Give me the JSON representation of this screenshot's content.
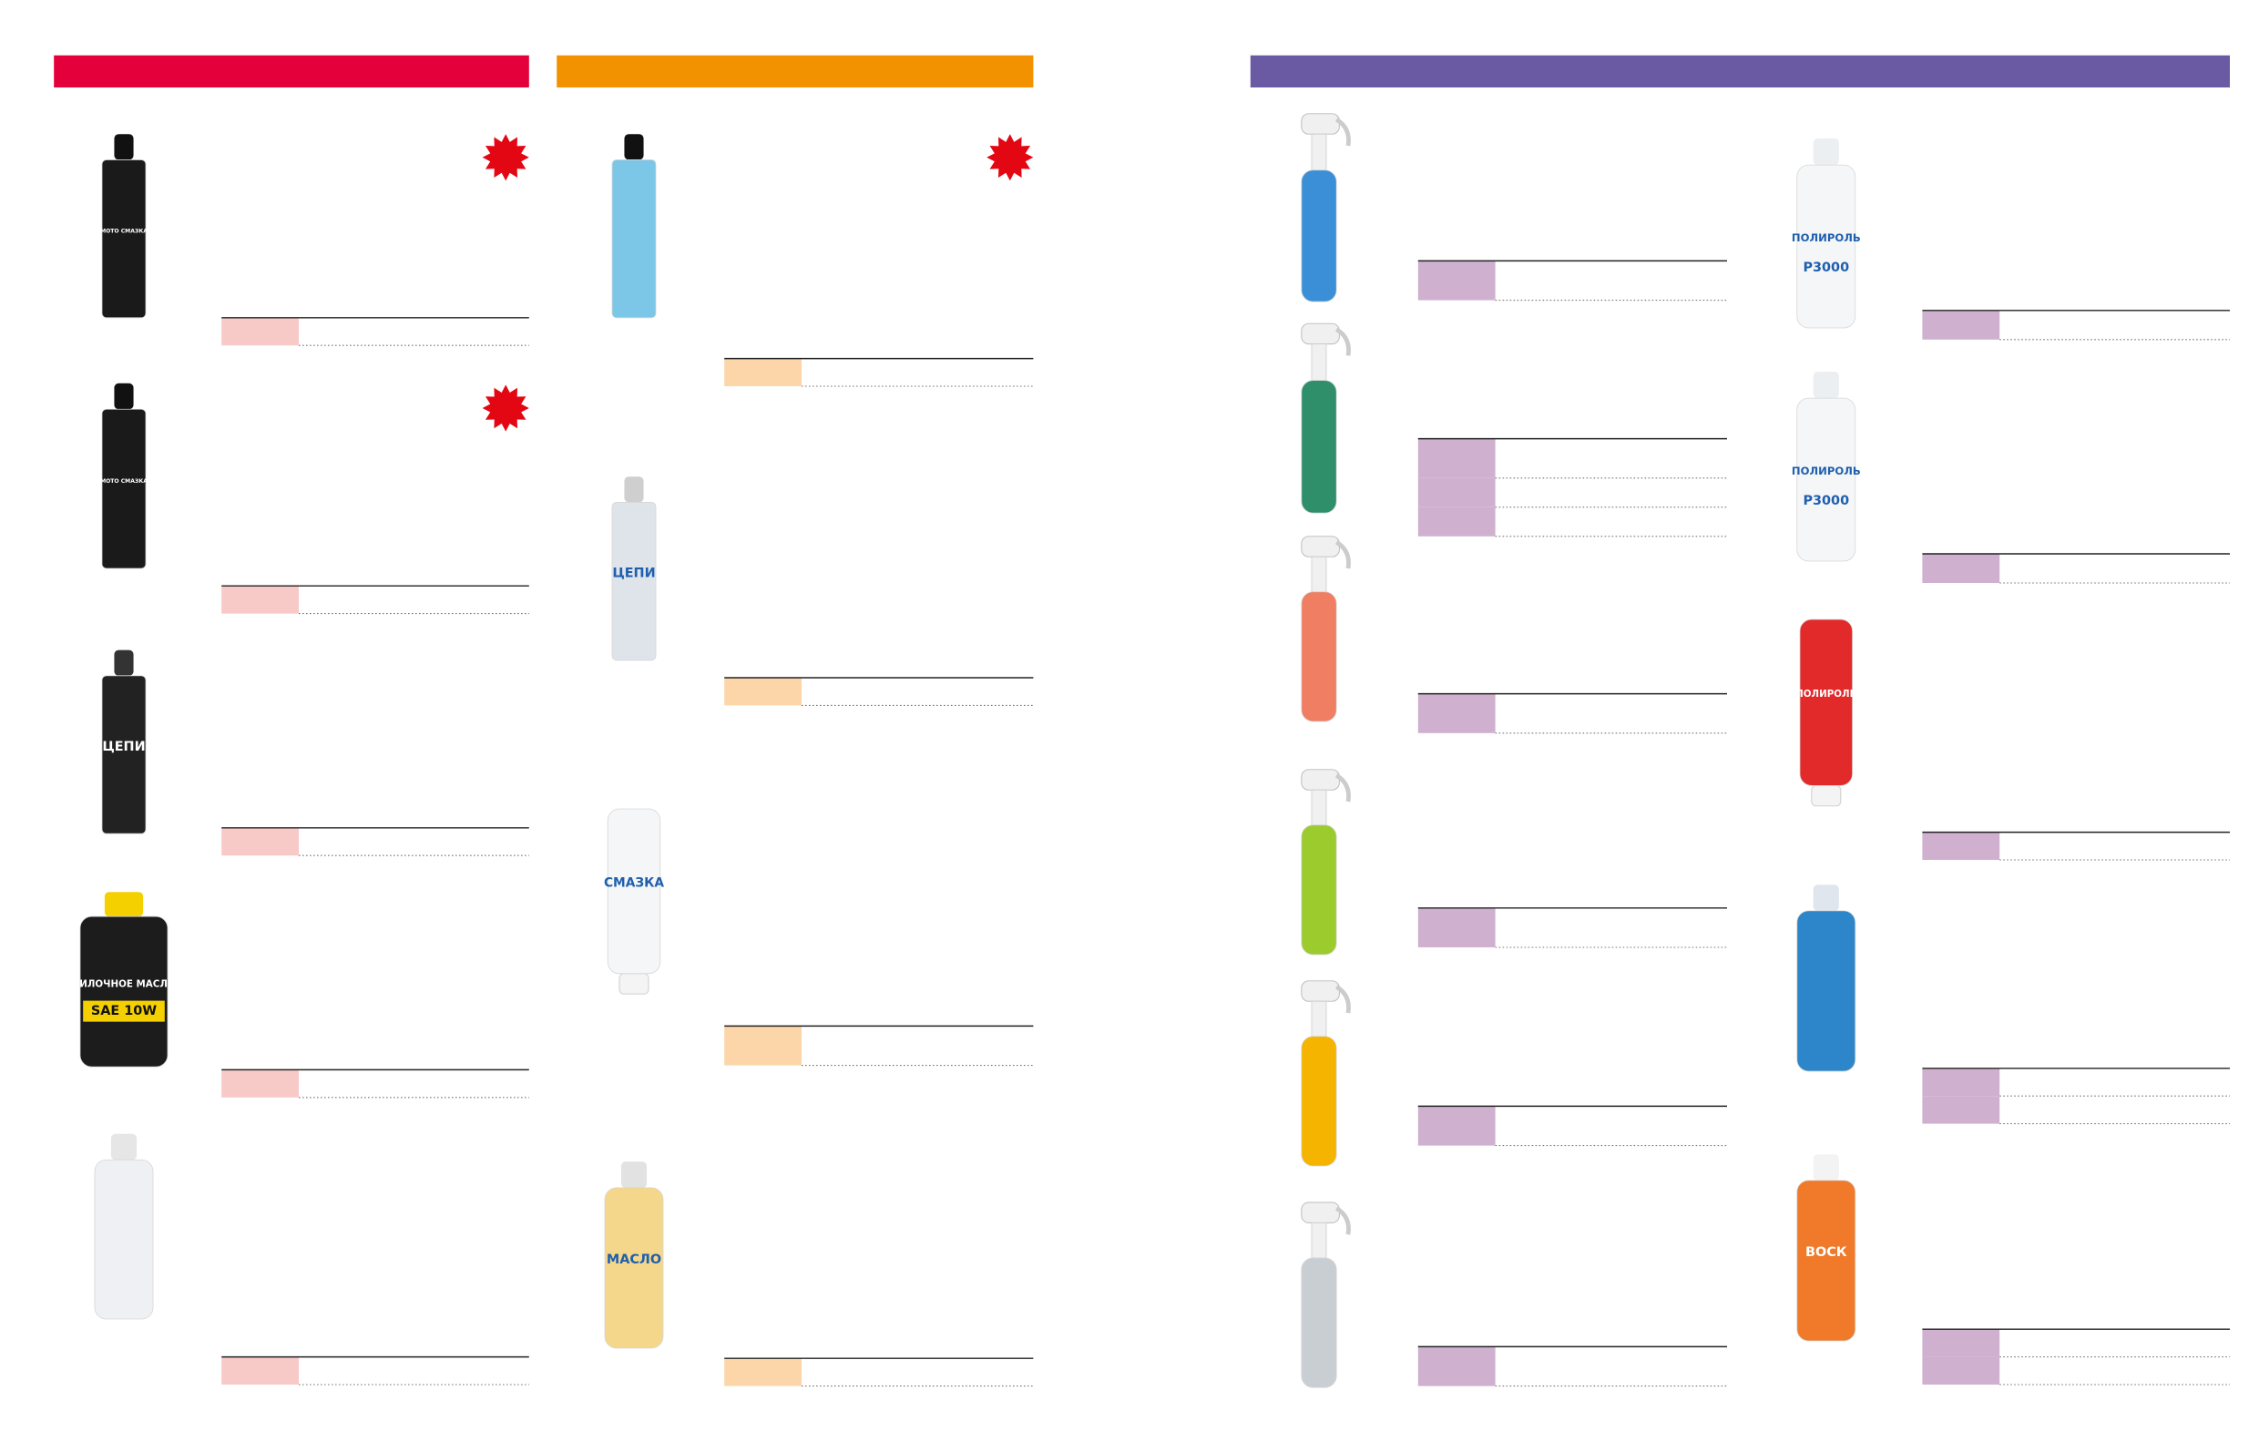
{
  "labels": [
    "МОТО СМАЗКА",
    "МОТО СМАЗКА",
    "ЦЕПИ",
    "ВИЛОЧНОЕ МАСЛО",
    "SAE 10W",
    "ЦЕПИ",
    "СМАЗКА",
    "МАСЛО",
    "ПОЛИРОЛЬ",
    "P3000",
    "ПОЛИРОЛЬ",
    "P3000",
    "ПОЛИРОЛЬ",
    "ВОСК"
  ]
}
